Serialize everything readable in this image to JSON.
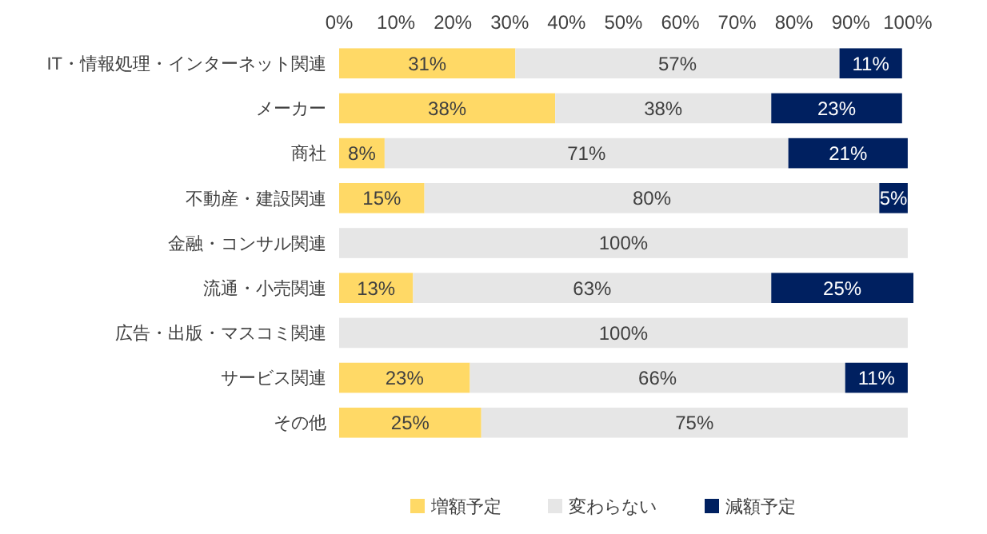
{
  "chart_data": {
    "type": "bar",
    "orientation": "horizontal",
    "stacked": true,
    "categories": [
      "IT・情報処理・インターネット関連",
      "メーカー",
      "商社",
      "不動産・建設関連",
      "金融・コンサル関連",
      "流通・小売関連",
      "広告・出版・マスコミ関連",
      "サービス関連",
      "その他"
    ],
    "series": [
      {
        "name": "増額予定",
        "color": "#ffd966",
        "values": [
          31,
          38,
          8,
          15,
          0,
          13,
          0,
          23,
          25
        ],
        "value_labels": [
          "31%",
          "38%",
          "8%",
          "15%",
          null,
          "13%",
          null,
          "23%",
          "25%"
        ]
      },
      {
        "name": "変わらない",
        "color": "#e6e6e6",
        "values": [
          57,
          38,
          71,
          80,
          100,
          63,
          100,
          66,
          75
        ],
        "value_labels": [
          "57%",
          "38%",
          "71%",
          "80%",
          "100%",
          "63%",
          "100%",
          "66%",
          "75%"
        ]
      },
      {
        "name": "減額予定",
        "color": "#002060",
        "values": [
          11,
          23,
          21,
          5,
          0,
          25,
          0,
          11,
          0
        ],
        "value_labels": [
          "11%",
          "23%",
          "21%",
          "5%",
          null,
          "25%",
          null,
          "11%",
          null
        ]
      }
    ],
    "xlim": [
      0,
      101
    ],
    "xticks": [
      {
        "value": 0,
        "label": "0%"
      },
      {
        "value": 10,
        "label": "10%"
      },
      {
        "value": 20,
        "label": "20%"
      },
      {
        "value": 30,
        "label": "30%"
      },
      {
        "value": 40,
        "label": "40%"
      },
      {
        "value": 50,
        "label": "50%"
      },
      {
        "value": 60,
        "label": "60%"
      },
      {
        "value": 70,
        "label": "70%"
      },
      {
        "value": 80,
        "label": "80%"
      },
      {
        "value": 90,
        "label": "90%"
      },
      {
        "value": 100,
        "label": "100%"
      }
    ],
    "grid": false,
    "legend": "bottom"
  }
}
